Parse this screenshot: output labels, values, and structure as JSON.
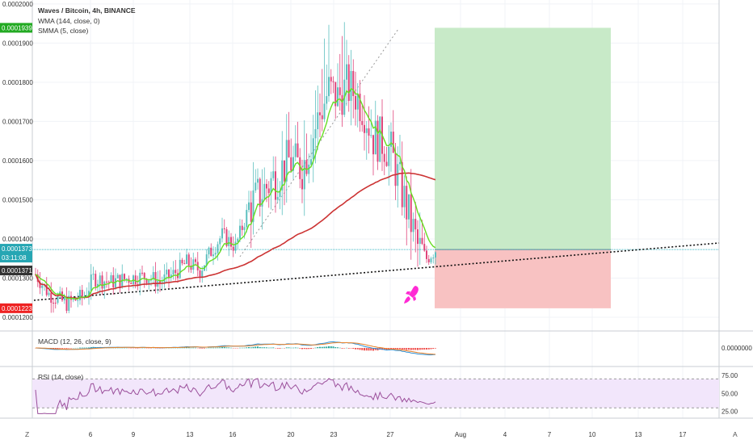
{
  "legend": {
    "symbol": "Waves / Bitcoin, 4h, BINANCE",
    "wma": "WMA (144, close, 0)",
    "smma": "SMMA (5, close)"
  },
  "macd_pane": {
    "title": "MACD (12, 26, close, 9)",
    "value_label": "0.0000000"
  },
  "rsi_pane": {
    "title": "RSI (14, close)",
    "ticks": [
      "75.00",
      "50.00",
      "25.00"
    ]
  },
  "corner_left": "Z",
  "corner_right": "A",
  "colors": {
    "up": "#5dbfbf",
    "down": "#e0457b",
    "wma": "#cc3333",
    "smma": "#66dd22",
    "macd": "#2d8fd5",
    "signal": "#e8822a",
    "rsi": "#9b4f9b",
    "target_zone": "#c8eac8",
    "stop_zone": "#f8c2c2",
    "rocket": "#ff2ad4"
  },
  "chart_data": {
    "type": "candlestick",
    "title": "Waves / Bitcoin, 4h, BINANCE",
    "x_ticks": [
      "6",
      "9",
      "13",
      "16",
      "20",
      "23",
      "27",
      "Aug",
      "4",
      "7",
      "10",
      "13",
      "17"
    ],
    "y_ticks": [
      "0.0002000",
      "0.0001900",
      "0.0001800",
      "0.0001700",
      "0.0001600",
      "0.0001500",
      "0.0001400",
      "0.0001300",
      "0.0001200"
    ],
    "ylim": [
      0.0001165,
      0.000201
    ],
    "price_labels": [
      {
        "value": "0.0001939",
        "role": "target"
      },
      {
        "value": "0.0001373",
        "role": "last"
      },
      {
        "value": "03:11:08",
        "role": "countdown"
      },
      {
        "value": "0.0001371",
        "role": "trend"
      },
      {
        "value": "0.0001223",
        "role": "stop"
      }
    ],
    "position": {
      "entry": 0.0001373,
      "target": 0.0001939,
      "stop": 0.0001223
    },
    "anchors": [
      {
        "t": 0,
        "v": 0.000131
      },
      {
        "t": 6,
        "v": 0.000126
      },
      {
        "t": 14,
        "v": 0.0001235
      },
      {
        "t": 22,
        "v": 0.0001255
      },
      {
        "t": 26,
        "v": 0.00013
      },
      {
        "t": 34,
        "v": 0.000129
      },
      {
        "t": 42,
        "v": 0.00013
      },
      {
        "t": 50,
        "v": 0.0001305
      },
      {
        "t": 56,
        "v": 0.000129
      },
      {
        "t": 62,
        "v": 0.000131
      },
      {
        "t": 68,
        "v": 0.000134
      },
      {
        "t": 74,
        "v": 0.000132
      },
      {
        "t": 78,
        "v": 0.000136
      },
      {
        "t": 84,
        "v": 0.000141
      },
      {
        "t": 90,
        "v": 0.000138
      },
      {
        "t": 96,
        "v": 0.000148
      },
      {
        "t": 102,
        "v": 0.000152
      },
      {
        "t": 108,
        "v": 0.000156
      },
      {
        "t": 114,
        "v": 0.00016
      },
      {
        "t": 120,
        "v": 0.000158
      },
      {
        "t": 124,
        "v": 0.000165
      },
      {
        "t": 128,
        "v": 0.000172
      },
      {
        "t": 132,
        "v": 0.000178
      },
      {
        "t": 136,
        "v": 0.000176
      },
      {
        "t": 140,
        "v": 0.000179
      },
      {
        "t": 144,
        "v": 0.000177
      },
      {
        "t": 148,
        "v": 0.000173
      },
      {
        "t": 152,
        "v": 0.000166
      },
      {
        "t": 156,
        "v": 0.000165
      },
      {
        "t": 160,
        "v": 0.000162
      },
      {
        "t": 164,
        "v": 0.000154
      },
      {
        "t": 168,
        "v": 0.000146
      },
      {
        "t": 172,
        "v": 0.000138
      },
      {
        "t": 176,
        "v": 0.000135
      },
      {
        "t": 180,
        "v": 0.0001373
      }
    ]
  }
}
